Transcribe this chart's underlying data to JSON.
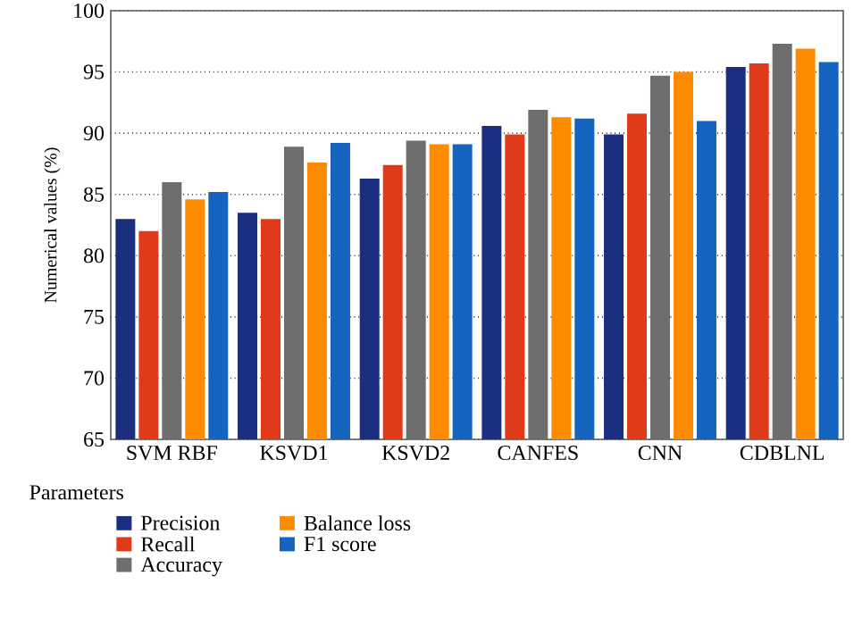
{
  "chart_data": {
    "type": "bar",
    "ylabel": "Numerical values (%)",
    "legend_title": "Parameters",
    "categories": [
      "SVM RBF",
      "KSVD1",
      "KSVD2",
      "CANFES",
      "CNN",
      "CDBLNL"
    ],
    "series": [
      {
        "name": "Precision",
        "color": "#1a2f80",
        "values": [
          83.0,
          83.5,
          86.3,
          90.6,
          89.9,
          95.4
        ]
      },
      {
        "name": "Recall",
        "color": "#e03a1a",
        "values": [
          82.0,
          83.0,
          87.4,
          89.9,
          91.6,
          95.7
        ]
      },
      {
        "name": "Accuracy",
        "color": "#6e6e6e",
        "values": [
          86.0,
          88.9,
          89.4,
          91.9,
          94.7,
          97.3
        ]
      },
      {
        "name": "Balance loss",
        "color": "#ff8c00",
        "values": [
          84.6,
          87.6,
          89.1,
          91.3,
          95.0,
          96.9
        ]
      },
      {
        "name": "F1 score",
        "color": "#1565c0",
        "values": [
          85.2,
          89.2,
          89.1,
          91.2,
          91.0,
          95.8
        ]
      }
    ],
    "ylim": [
      65,
      100
    ],
    "yticks": [
      65,
      70,
      75,
      80,
      85,
      90,
      95,
      100
    ],
    "grid": "y",
    "legend": "bottom"
  }
}
